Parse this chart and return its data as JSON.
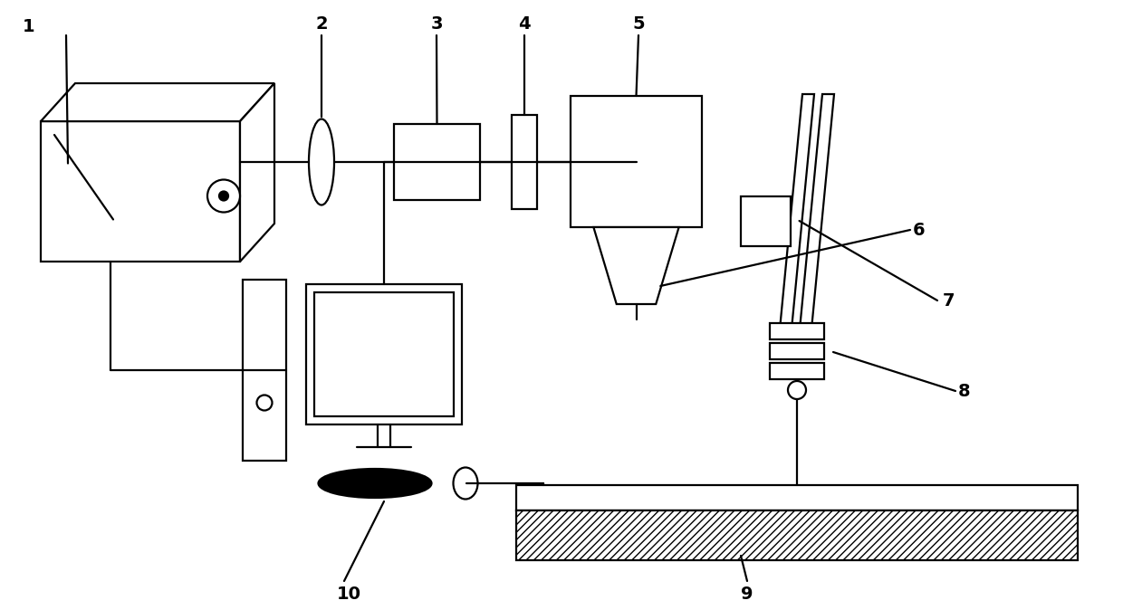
{
  "bg_color": "#ffffff",
  "line_color": "#000000",
  "lw": 1.6,
  "fig_width": 12.4,
  "fig_height": 6.74,
  "dpi": 100
}
